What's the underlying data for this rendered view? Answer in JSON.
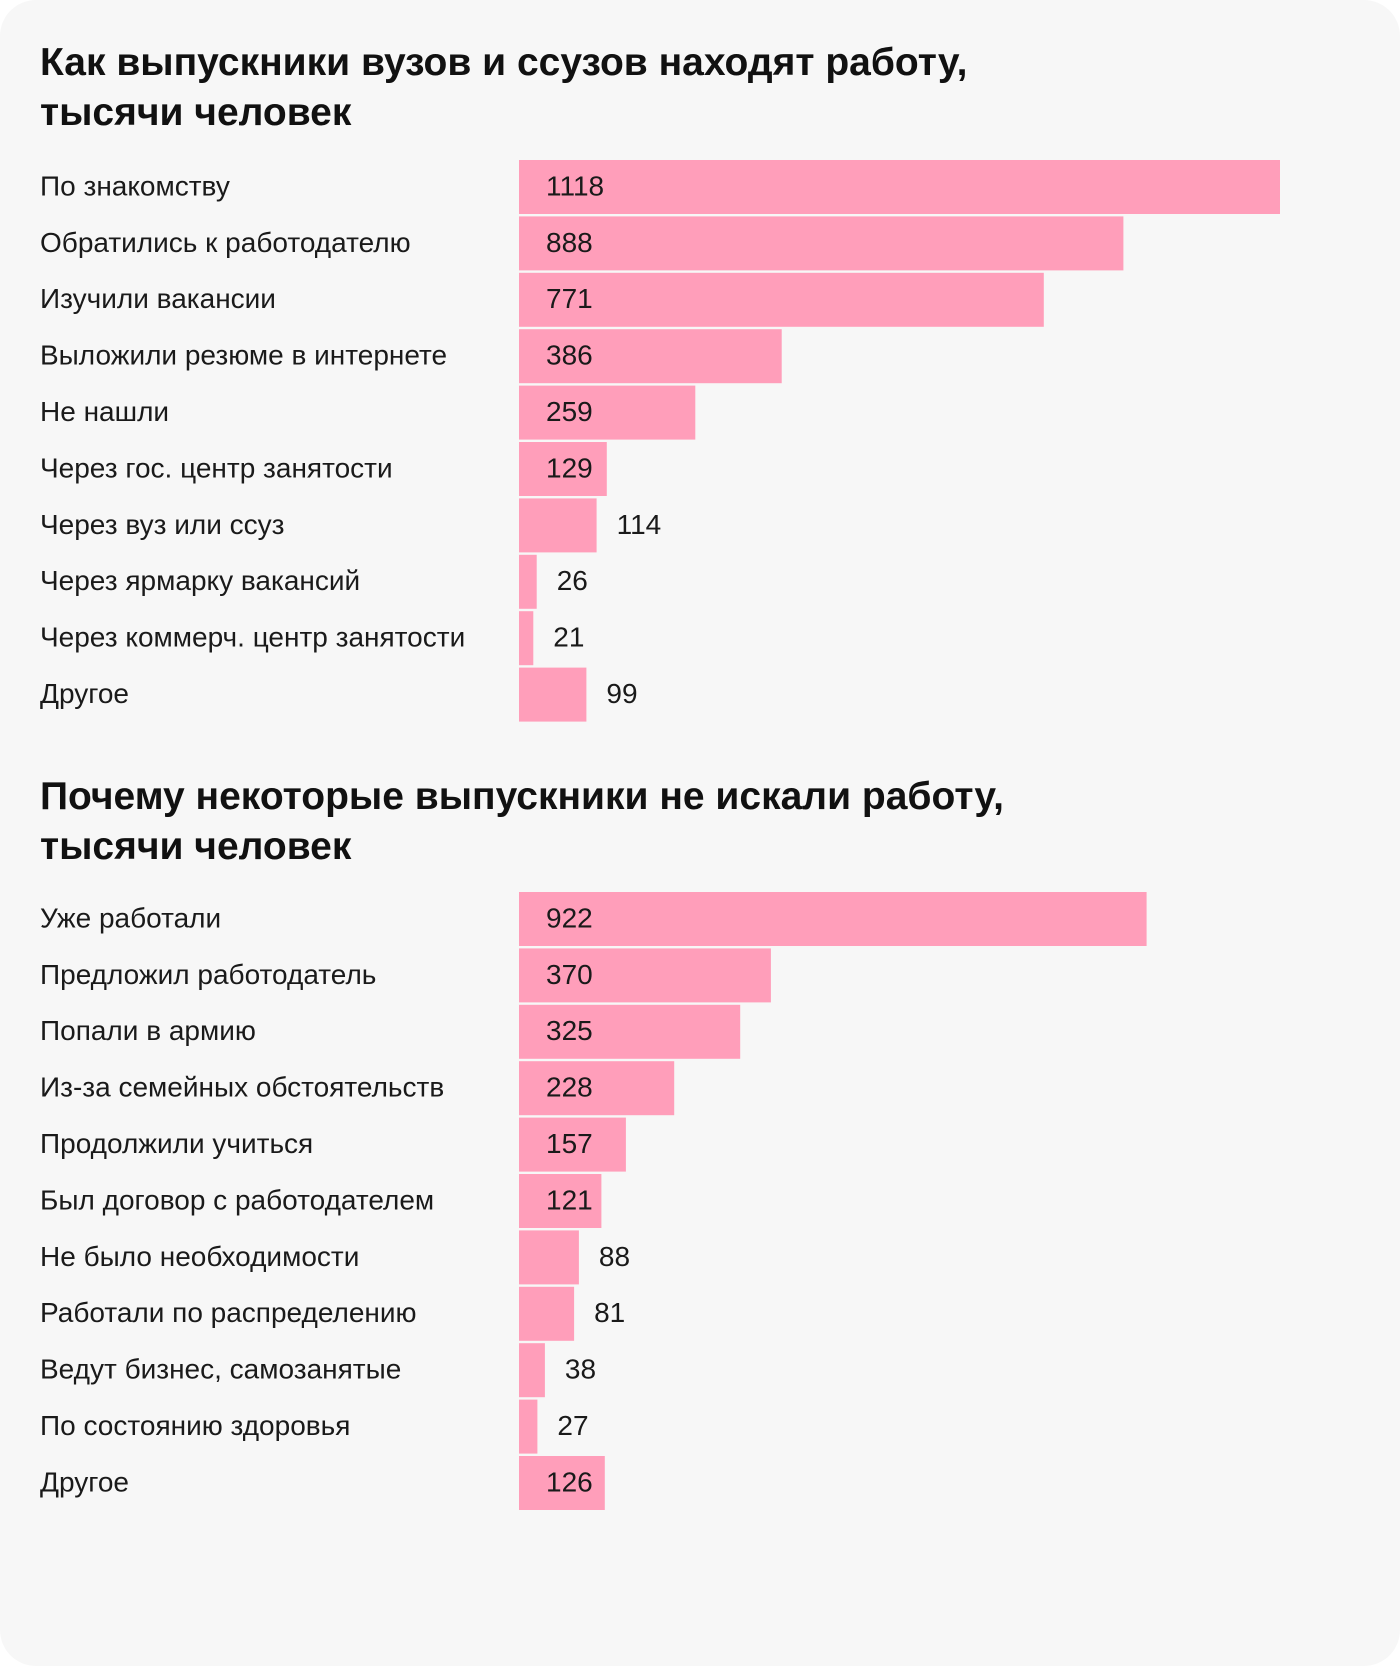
{
  "colors": {
    "background": "#f7f7f7",
    "bar": "#ff9eba",
    "text": "#1a1a1a"
  },
  "chart_data": [
    {
      "type": "bar",
      "orientation": "horizontal",
      "title": "Как выпускники вузов и ссузов находят работу,\nтысячи человек",
      "categories": [
        "По знакомству",
        "Обратились к работодателю",
        "Изучили вакансии",
        "Выложили резюме в интернете",
        "Не нашли",
        "Через гос. центр занятости",
        "Через вуз или ссуз",
        "Через ярмарку вакансий",
        "Через коммерч. центр занятости",
        "Другое"
      ],
      "values": [
        1118,
        888,
        771,
        386,
        259,
        129,
        114,
        26,
        21,
        99
      ],
      "xlim": [
        0,
        1118
      ],
      "grid": false,
      "legend": "none"
    },
    {
      "type": "bar",
      "orientation": "horizontal",
      "title": "Почему некоторые выпускники не искали работу,\nтысячи человек",
      "categories": [
        "Уже работали",
        "Предложил работодатель",
        "Попали в армию",
        "Из-за семейных обстоятельств",
        "Продолжили учиться",
        "Был договор с работодателем",
        "Не было необходимости",
        "Работали по распределению",
        "Ведут бизнес, самозанятые",
        "По состоянию здоровья",
        "Другое"
      ],
      "values": [
        922,
        370,
        325,
        228,
        157,
        121,
        88,
        81,
        38,
        27,
        126
      ],
      "xlim": [
        0,
        1118
      ],
      "grid": false,
      "legend": "none"
    }
  ]
}
